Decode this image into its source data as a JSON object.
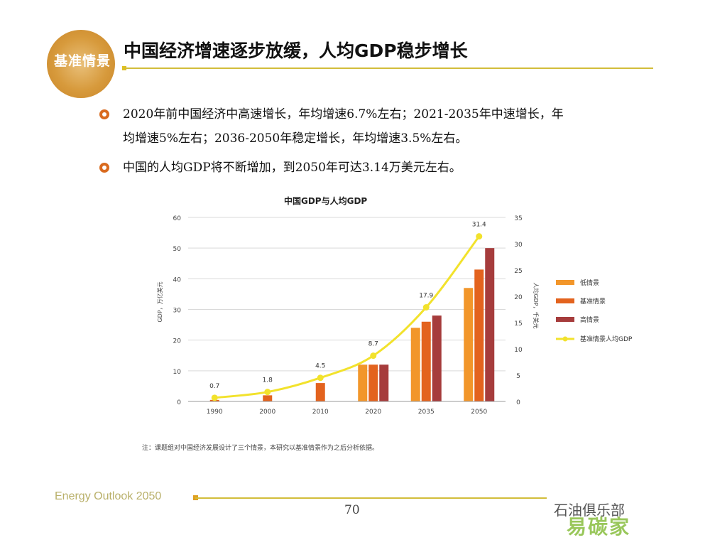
{
  "logo": {
    "text": "基准情景"
  },
  "header": {
    "title": "中国经济增速逐步放缓，人均GDP稳步增长"
  },
  "bullets": [
    {
      "line1": "2020年前中国经济中高速增长，年均增速6.7%左右；2021-2035年中速增长，年",
      "line2": "均增速5%左右；2036-2050年稳定增长，年均增速3.5%左右。"
    },
    {
      "line1": "中国的人均GDP将不断增加，到2050年可达3.14万美元左右。"
    }
  ],
  "chart_data": {
    "type": "bar",
    "title": "中国GDP与人均GDP",
    "categories": [
      "1990",
      "2000",
      "2010",
      "2020",
      "2035",
      "2050"
    ],
    "ylabel": "GDP，万亿美元",
    "ylabel_right": "人均GDP，千美元",
    "ylim": [
      0,
      60
    ],
    "ylim_right": [
      0,
      35
    ],
    "yticks": [
      0,
      10,
      20,
      30,
      40,
      50,
      60
    ],
    "yticks_right": [
      0,
      5,
      10,
      15,
      20,
      25,
      30,
      35
    ],
    "series": [
      {
        "name": "低情景",
        "color": "#f2962a",
        "values": [
          null,
          null,
          null,
          12,
          24,
          37
        ]
      },
      {
        "name": "基准情景",
        "color": "#e3631e",
        "values": [
          0.5,
          2,
          6,
          12,
          26,
          43
        ]
      },
      {
        "name": "高情景",
        "color": "#a63c3c",
        "values": [
          null,
          null,
          null,
          12,
          28,
          50
        ]
      },
      {
        "name": "基准情景人均GDP",
        "type": "line",
        "axis": "right",
        "color": "#f2e22c",
        "values": [
          0.7,
          1.8,
          4.5,
          8.7,
          17.9,
          31.4
        ],
        "labels": [
          "0.7",
          "1.8",
          "4.5",
          "8.7",
          "17.9",
          "31.4"
        ]
      }
    ],
    "grid": true,
    "legend": "right"
  },
  "note": "注：课题组对中国经济发展设计了三个情景，本研究以基准情景作为之后分析依据。",
  "footer": {
    "text": "Energy Outlook 2050",
    "page": "70",
    "watermark": "石油俱乐部",
    "stamp": "易碳家"
  }
}
